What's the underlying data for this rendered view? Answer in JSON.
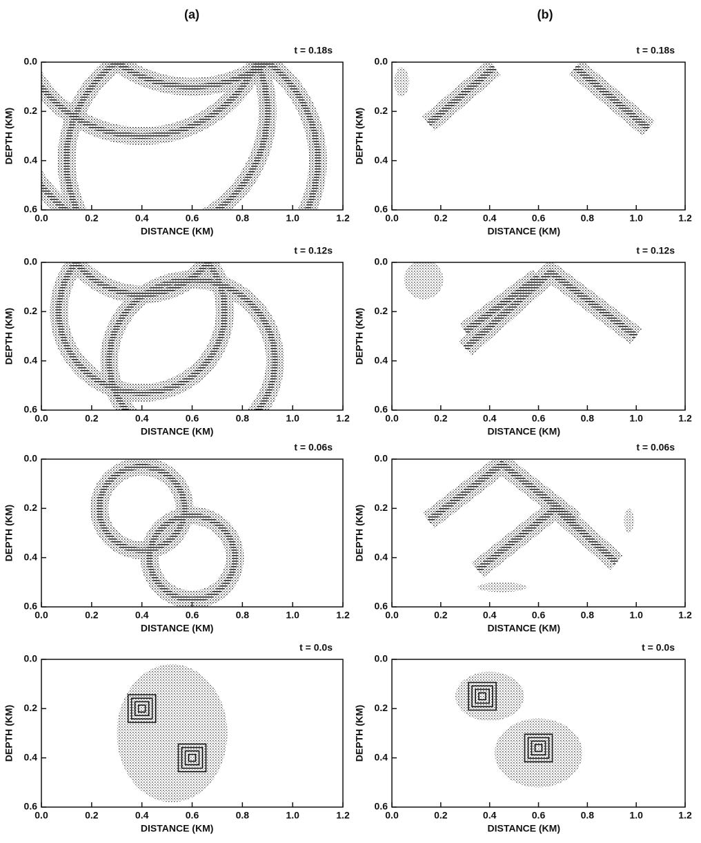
{
  "figure": {
    "columns": [
      {
        "label": "(a)",
        "panels": [
          {
            "time": "t = 0.18s"
          },
          {
            "time": "t = 0.12s"
          },
          {
            "time": "t = 0.06s"
          },
          {
            "time": "t = 0.0s"
          }
        ]
      },
      {
        "label": "(b)",
        "panels": [
          {
            "time": "t = 0.18s"
          },
          {
            "time": "t = 0.12s"
          },
          {
            "time": "t = 0.06s"
          },
          {
            "time": "t = 0.0s"
          }
        ]
      }
    ],
    "axes": {
      "xlabel": "DISTANCE (KM)",
      "ylabel": "DEPTH (KM)",
      "xlim": [
        0,
        1.2
      ],
      "ylim": [
        0,
        0.6
      ],
      "y_inverted": true,
      "xticks": [
        {
          "value": 0,
          "label": "0.0"
        },
        0.2,
        0.4,
        0.6,
        0.8,
        {
          "value": 1,
          "label": "1.0"
        },
        1.2
      ],
      "yticks": [
        {
          "value": 0,
          "label": "0.0"
        },
        0.2,
        0.4,
        0.6
      ]
    }
  }
}
